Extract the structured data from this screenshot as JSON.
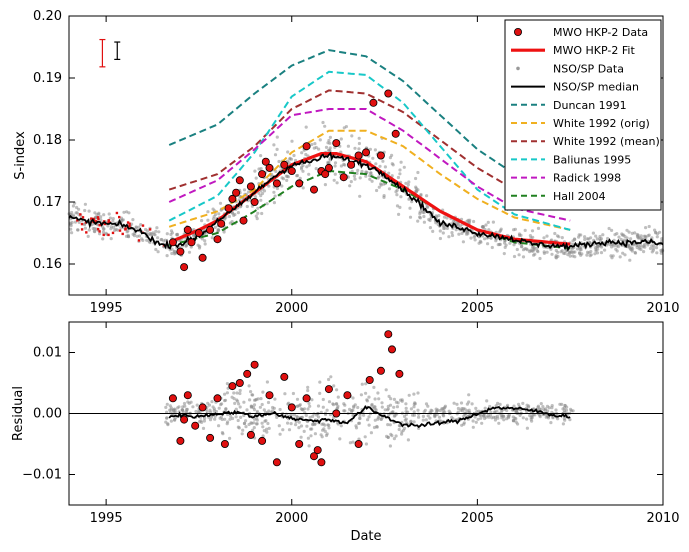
{
  "chart_data": [
    {
      "type": "line",
      "panel": "top",
      "xlabel": "",
      "ylabel": "S-index",
      "xlim": [
        1994,
        2010
      ],
      "ylim": [
        0.155,
        0.2
      ],
      "x_ticks": [
        1995,
        2000,
        2005,
        2010
      ],
      "y_ticks": [
        0.16,
        0.17,
        0.18,
        0.19,
        0.2
      ],
      "x_tick_labels": [
        "1995",
        "2000",
        "2005",
        "2010"
      ],
      "y_tick_labels": [
        "0.16",
        "0.17",
        "0.18",
        "0.19",
        "0.20"
      ],
      "legend_position": "top-right",
      "legend": [
        {
          "label": "MWO HKP-2 Data",
          "style": "marker",
          "color": "#dd1111"
        },
        {
          "label": "MWO HKP-2 Fit",
          "style": "thick-line",
          "color": "#ee1111"
        },
        {
          "label": "NSO/SP Data",
          "style": "small-marker",
          "color": "#999999"
        },
        {
          "label": "NSO/SP median",
          "style": "line",
          "color": "#000000"
        },
        {
          "label": "Duncan 1991",
          "style": "dashed",
          "color": "#1a8080"
        },
        {
          "label": "White 1992 (orig)",
          "style": "dashed",
          "color": "#f0b020"
        },
        {
          "label": "White 1992 (mean)",
          "style": "dashed",
          "color": "#a03030"
        },
        {
          "label": "Baliunas 1995",
          "style": "dashed",
          "color": "#18c8c8"
        },
        {
          "label": "Radick 1998",
          "style": "dashed",
          "color": "#c018c0"
        },
        {
          "label": "Hall 2004",
          "style": "dashed",
          "color": "#208020"
        }
      ],
      "series": [
        {
          "name": "Duncan 1991",
          "color": "#1a8080",
          "x": [
            1996.7,
            1998,
            1999,
            2000,
            2001,
            2002,
            2003,
            2004,
            2005,
            2006,
            2007.5
          ],
          "y": [
            0.1792,
            0.1825,
            0.1875,
            0.192,
            0.1945,
            0.1935,
            0.1895,
            0.184,
            0.1785,
            0.1745,
            0.1725
          ]
        },
        {
          "name": "White 1992 (orig)",
          "color": "#f0b020",
          "x": [
            1996.7,
            1998,
            1999,
            2000,
            2001,
            2002,
            2003,
            2004,
            2005,
            2006,
            2007.5
          ],
          "y": [
            0.166,
            0.1685,
            0.172,
            0.178,
            0.1815,
            0.1815,
            0.179,
            0.1745,
            0.1705,
            0.1675,
            0.1655
          ]
        },
        {
          "name": "White 1992 (mean)",
          "color": "#a03030",
          "x": [
            1996.7,
            1998,
            1999,
            2000,
            2001,
            2002,
            2003,
            2004,
            2005,
            2006,
            2007.5
          ],
          "y": [
            0.172,
            0.1745,
            0.179,
            0.185,
            0.188,
            0.1875,
            0.1845,
            0.18,
            0.1755,
            0.172,
            0.17
          ]
        },
        {
          "name": "Baliunas 1995",
          "color": "#18c8c8",
          "x": [
            1996.7,
            1998,
            1999,
            2000,
            2001,
            2002,
            2003,
            2004,
            2005,
            2006,
            2007.5
          ],
          "y": [
            0.167,
            0.171,
            0.178,
            0.187,
            0.191,
            0.1905,
            0.186,
            0.179,
            0.172,
            0.168,
            0.1655
          ]
        },
        {
          "name": "Radick 1998",
          "color": "#c018c0",
          "x": [
            1996.7,
            1998,
            1999,
            2000,
            2001,
            2002,
            2003,
            2004,
            2005,
            2006,
            2007.5
          ],
          "y": [
            0.17,
            0.1735,
            0.1785,
            0.184,
            0.185,
            0.185,
            0.1815,
            0.177,
            0.1725,
            0.169,
            0.167
          ]
        },
        {
          "name": "Hall 2004",
          "color": "#208020",
          "x": [
            1996.7,
            1998,
            1999,
            2000,
            2001,
            2002,
            2003,
            2004,
            2005,
            2006,
            2007.5
          ],
          "y": [
            0.163,
            0.165,
            0.1685,
            0.1725,
            0.175,
            0.1745,
            0.172,
            0.1685,
            0.1655,
            0.1635,
            0.1625
          ]
        },
        {
          "name": "MWO HKP-2 Fit",
          "color": "#ee1111",
          "x": [
            1996.7,
            1997.5,
            1998,
            1999,
            2000,
            2000.8,
            2001.2,
            2002,
            2003,
            2004,
            2005,
            2006,
            2007.5
          ],
          "y": [
            0.1635,
            0.1655,
            0.167,
            0.1715,
            0.176,
            0.1778,
            0.1778,
            0.1765,
            0.1725,
            0.1685,
            0.1655,
            0.164,
            0.1632
          ]
        },
        {
          "name": "NSO/SP median",
          "color": "#000000",
          "x": [
            1994,
            1994.5,
            1995,
            1995.5,
            1996,
            1996.5,
            1997,
            1997.5,
            1998,
            1998.5,
            1999,
            1999.5,
            2000,
            2000.5,
            2001,
            2001.5,
            2002,
            2002.5,
            2003,
            2003.5,
            2004,
            2004.5,
            2005,
            2005.5,
            2006,
            2006.5,
            2007,
            2007.5,
            2008,
            2008.5,
            2009,
            2009.5,
            2010
          ],
          "y": [
            0.1675,
            0.1668,
            0.1665,
            0.1662,
            0.165,
            0.163,
            0.1632,
            0.1645,
            0.167,
            0.169,
            0.1715,
            0.174,
            0.176,
            0.1765,
            0.1775,
            0.1768,
            0.176,
            0.1745,
            0.172,
            0.1695,
            0.1665,
            0.166,
            0.165,
            0.1645,
            0.164,
            0.1632,
            0.163,
            0.1628,
            0.1632,
            0.1636,
            0.1634,
            0.1636,
            0.1632
          ]
        }
      ],
      "mwo_points": {
        "x": [
          1996.8,
          1997.0,
          1997.1,
          1997.3,
          1997.5,
          1997.6,
          1997.8,
          1998.0,
          1998.1,
          1998.3,
          1998.4,
          1998.5,
          1998.6,
          1998.7,
          1998.9,
          1999.0,
          1999.2,
          1999.4,
          1999.6,
          1999.8,
          2000.0,
          2000.2,
          2000.4,
          2000.6,
          2000.8,
          2001.0,
          2001.2,
          2001.4,
          2001.6,
          2001.8,
          2002.0,
          2002.2,
          2002.4,
          2002.6,
          2002.8,
          1997.2,
          1999.3,
          2000.9
        ],
        "y": [
          0.1635,
          0.162,
          0.1595,
          0.1635,
          0.165,
          0.161,
          0.1655,
          0.164,
          0.1665,
          0.169,
          0.1705,
          0.1715,
          0.1735,
          0.167,
          0.1725,
          0.17,
          0.1745,
          0.1755,
          0.173,
          0.176,
          0.175,
          0.173,
          0.179,
          0.172,
          0.175,
          0.1755,
          0.1795,
          0.174,
          0.176,
          0.1775,
          0.178,
          0.186,
          0.1775,
          0.1875,
          0.181,
          0.1655,
          0.1765,
          0.1745
        ]
      },
      "annotation": "error bars (red MWO, black NSO/SP) at top-left"
    },
    {
      "type": "scatter",
      "panel": "bottom",
      "xlabel": "Date",
      "ylabel": "Residual",
      "xlim": [
        1994,
        2010
      ],
      "ylim": [
        -0.015,
        0.015
      ],
      "x_ticks": [
        1995,
        2000,
        2005,
        2010
      ],
      "y_ticks": [
        -0.01,
        0.0,
        0.01
      ],
      "x_tick_labels": [
        "1995",
        "2000",
        "2005",
        "2010"
      ],
      "y_tick_labels": [
        "−0.01",
        "0.00",
        "0.01"
      ],
      "series": [
        {
          "name": "NSO/SP median residual",
          "color": "#000000",
          "x": [
            1996.7,
            1997,
            1997.5,
            1998,
            1998.5,
            1999,
            1999.5,
            2000,
            2000.5,
            2001,
            2001.5,
            2002,
            2002.5,
            2003,
            2003.5,
            2004,
            2004.5,
            2005,
            2005.5,
            2006,
            2006.5,
            2007,
            2007.5
          ],
          "y": [
            -0.0005,
            -0.0003,
            -0.0005,
            0.0,
            0.0002,
            -0.0005,
            0.0001,
            -0.0008,
            -0.0012,
            -0.001,
            -0.0015,
            0.001,
            -0.0005,
            -0.0018,
            -0.002,
            -0.0015,
            -0.0012,
            0.0,
            0.001,
            0.0008,
            0.0005,
            -0.0002,
            -0.0005
          ]
        }
      ],
      "mwo_residuals": {
        "x": [
          1996.8,
          1997.0,
          1997.2,
          1997.4,
          1997.6,
          1997.8,
          1998.0,
          1998.2,
          1998.4,
          1998.6,
          1998.8,
          1999.0,
          1999.2,
          1999.4,
          1999.6,
          1999.8,
          2000.0,
          2000.2,
          2000.4,
          2000.6,
          2000.8,
          2001.0,
          2001.2,
          2001.5,
          2001.8,
          2002.1,
          2002.4,
          2002.6,
          2002.7,
          2002.9,
          1997.1,
          1998.9,
          2000.7
        ],
        "y": [
          0.0025,
          -0.0045,
          0.003,
          -0.002,
          0.001,
          -0.004,
          0.0025,
          -0.005,
          0.0045,
          0.005,
          0.0065,
          0.008,
          -0.0045,
          0.003,
          -0.008,
          0.006,
          0.001,
          -0.005,
          0.0025,
          -0.007,
          -0.008,
          0.004,
          0.0,
          0.003,
          -0.005,
          0.0055,
          0.007,
          0.013,
          0.0105,
          0.0065,
          -0.001,
          -0.0035,
          -0.006
        ]
      }
    }
  ]
}
